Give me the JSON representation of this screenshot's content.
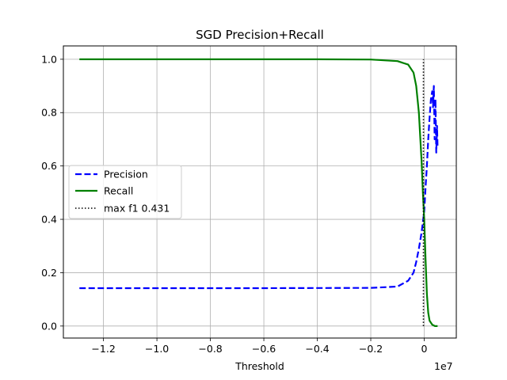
{
  "chart_data": {
    "type": "line",
    "title": "SGD Precision+Recall",
    "xlabel": "Threshold",
    "ylabel": "",
    "x_offset_label": "1e7",
    "xlim": [
      -1.35,
      0.12
    ],
    "ylim": [
      -0.045,
      1.05
    ],
    "x_ticks": [
      -1.2,
      -1.0,
      -0.8,
      -0.6,
      -0.4,
      -0.2,
      0.0
    ],
    "x_tick_labels": [
      "−1.2",
      "−1.0",
      "−0.8",
      "−0.6",
      "−0.4",
      "−0.2",
      "0"
    ],
    "y_ticks": [
      0.0,
      0.2,
      0.4,
      0.6,
      0.8,
      1.0
    ],
    "y_tick_labels": [
      "0.0",
      "0.2",
      "0.4",
      "0.6",
      "0.8",
      "1.0"
    ],
    "grid": true,
    "legend_position": "center-left",
    "series": [
      {
        "name": "Precision",
        "color": "#0000ff",
        "style": "dashed",
        "x": [
          -1.29,
          -1.0,
          -0.6,
          -0.2,
          -0.1,
          -0.06,
          -0.04,
          -0.03,
          -0.02,
          -0.01,
          0.0,
          0.005,
          0.01,
          0.015,
          0.02,
          0.025,
          0.03,
          0.033,
          0.036,
          0.039,
          0.042,
          0.045,
          0.048,
          0.05
        ],
        "y": [
          0.142,
          0.142,
          0.142,
          0.143,
          0.148,
          0.17,
          0.2,
          0.24,
          0.29,
          0.35,
          0.43,
          0.52,
          0.6,
          0.7,
          0.78,
          0.85,
          0.88,
          0.82,
          0.9,
          0.7,
          0.85,
          0.65,
          0.75,
          0.67
        ]
      },
      {
        "name": "Recall",
        "color": "#008000",
        "style": "solid",
        "x": [
          -1.29,
          -0.8,
          -0.4,
          -0.2,
          -0.1,
          -0.06,
          -0.04,
          -0.03,
          -0.02,
          -0.01,
          -0.005,
          0.0,
          0.005,
          0.01,
          0.015,
          0.02,
          0.03,
          0.04,
          0.05
        ],
        "y": [
          1.0,
          1.0,
          1.0,
          0.999,
          0.993,
          0.98,
          0.95,
          0.9,
          0.8,
          0.62,
          0.5,
          0.4,
          0.25,
          0.12,
          0.05,
          0.02,
          0.005,
          0.0,
          0.0
        ]
      }
    ],
    "vline": {
      "name": "max f1 0.431",
      "color": "#000000",
      "style": "dotted",
      "x": -0.003,
      "y_range": [
        0.0,
        1.0
      ]
    }
  }
}
